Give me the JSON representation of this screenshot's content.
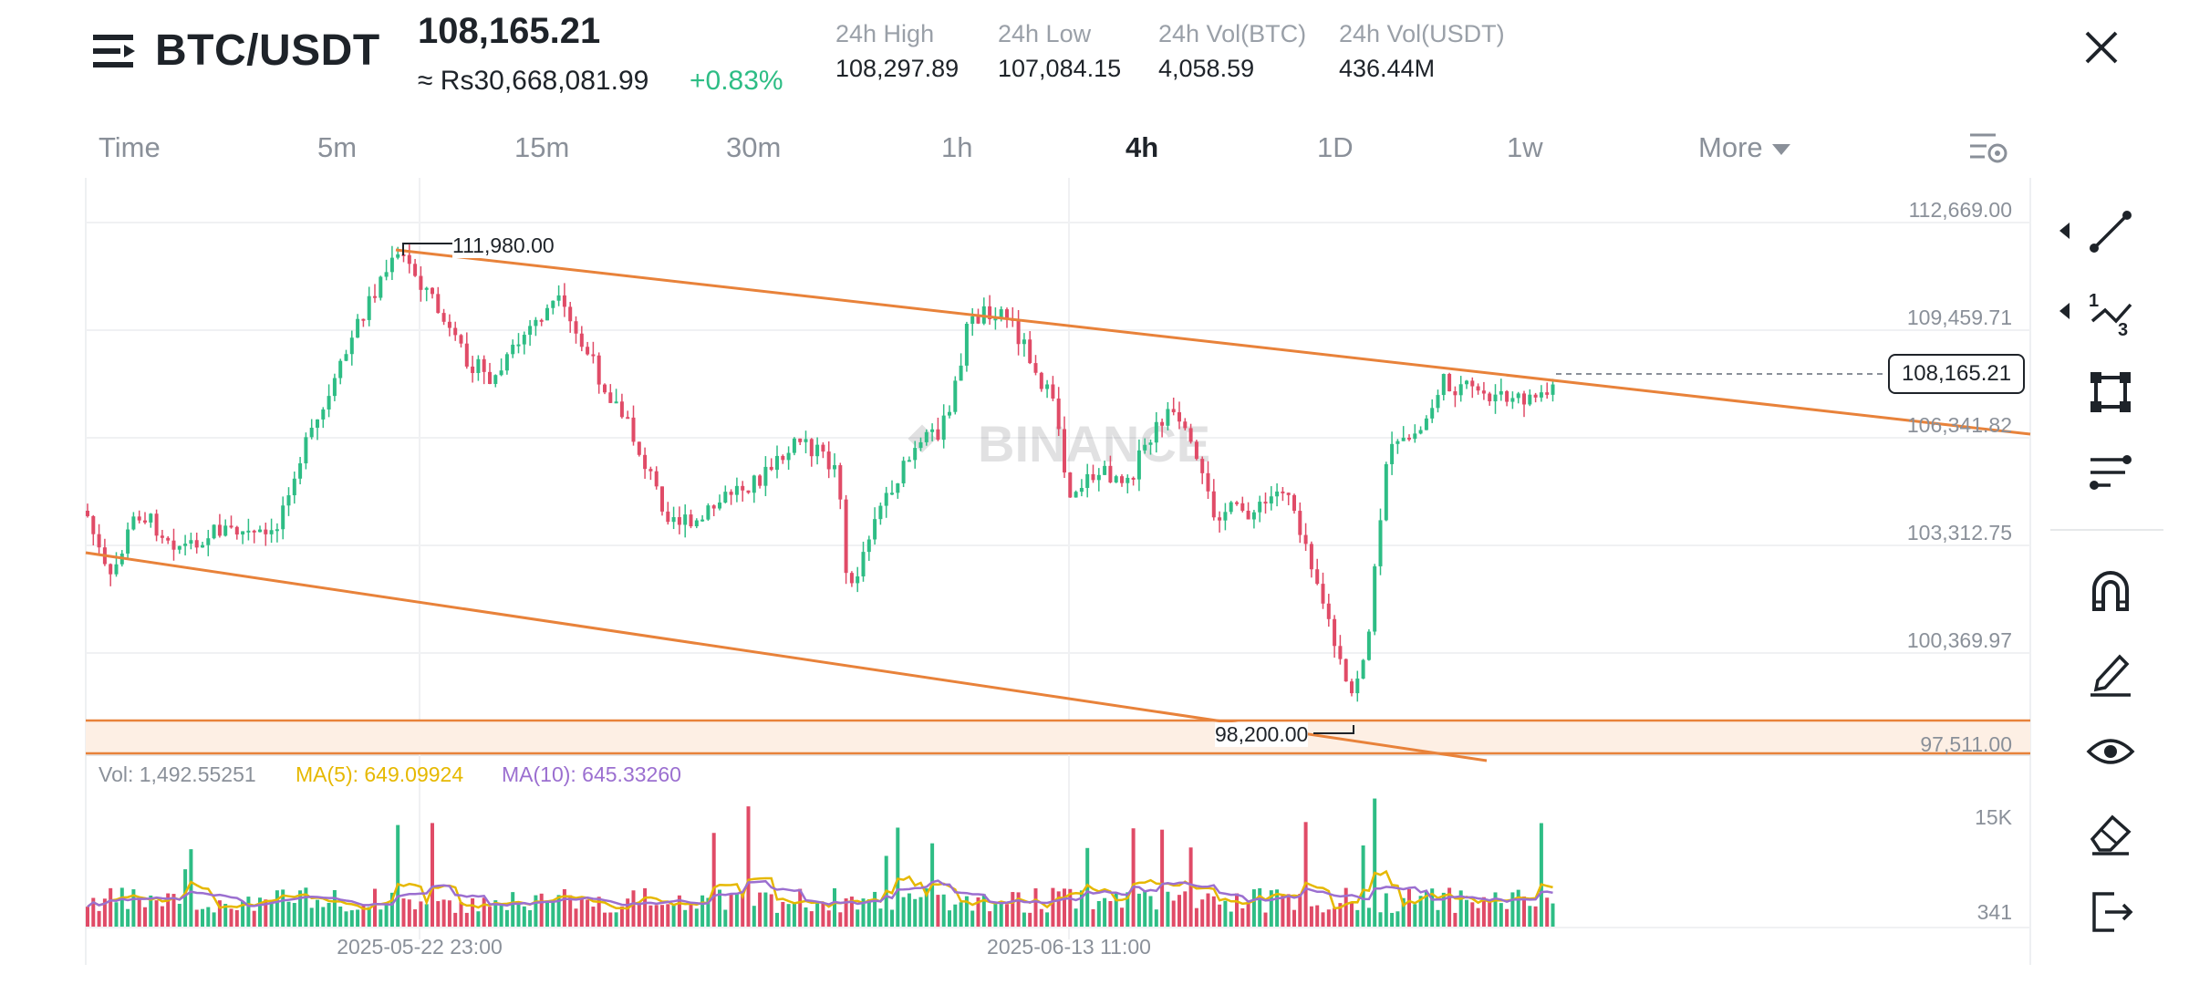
{
  "header": {
    "menu_icon": "hamburger-menu-icon",
    "pair": "BTC/USDT",
    "last_price": "108,165.21",
    "fiat_price": "≈ Rs30,668,081.99",
    "change": "+0.83%",
    "stats": [
      {
        "label": "24h High",
        "value": "108,297.89"
      },
      {
        "label": "24h Low",
        "value": "107,084.15"
      },
      {
        "label": "24h Vol(BTC)",
        "value": "4,058.59"
      },
      {
        "label": "24h Vol(USDT)",
        "value": "436.44M"
      }
    ],
    "close_icon": "close-icon"
  },
  "intervals": {
    "items": [
      "Time",
      "5m",
      "15m",
      "30m",
      "1h",
      "4h",
      "1D",
      "1w",
      "More"
    ],
    "active": "4h",
    "settings_icon": "chart-settings-icon"
  },
  "chart": {
    "watermark": "BINANCE",
    "price_axis": [
      "112,669.00",
      "109,459.71",
      "106,341.82",
      "103,312.75",
      "100,369.97",
      "97,511.00"
    ],
    "current_price_tag": "108,165.21",
    "high_label": "111,980.00",
    "low_label": "98,200.00",
    "colors": {
      "up": "#2ebd85",
      "down": "#e04b67",
      "trendline": "#e8823a",
      "zone": "#fdefe4"
    }
  },
  "volume": {
    "vol": "Vol: 1,492.55251",
    "ma5": "MA(5): 649.09924",
    "ma10": "MA(10): 645.33260",
    "axis": [
      "15K",
      "341"
    ],
    "colors": {
      "ma5": "#e6b800",
      "ma10": "#9b6fd0"
    }
  },
  "time_axis": [
    "2025-05-22 23:00",
    "2025-06-13 11:00"
  ],
  "toolbar": {
    "tools": [
      "trend-line-icon",
      "fibonacci-icon",
      "rectangle-shape-icon",
      "indicator-lines-icon",
      "magnet-icon",
      "pencil-icon",
      "eye-icon",
      "eraser-icon",
      "exit-icon"
    ]
  }
}
